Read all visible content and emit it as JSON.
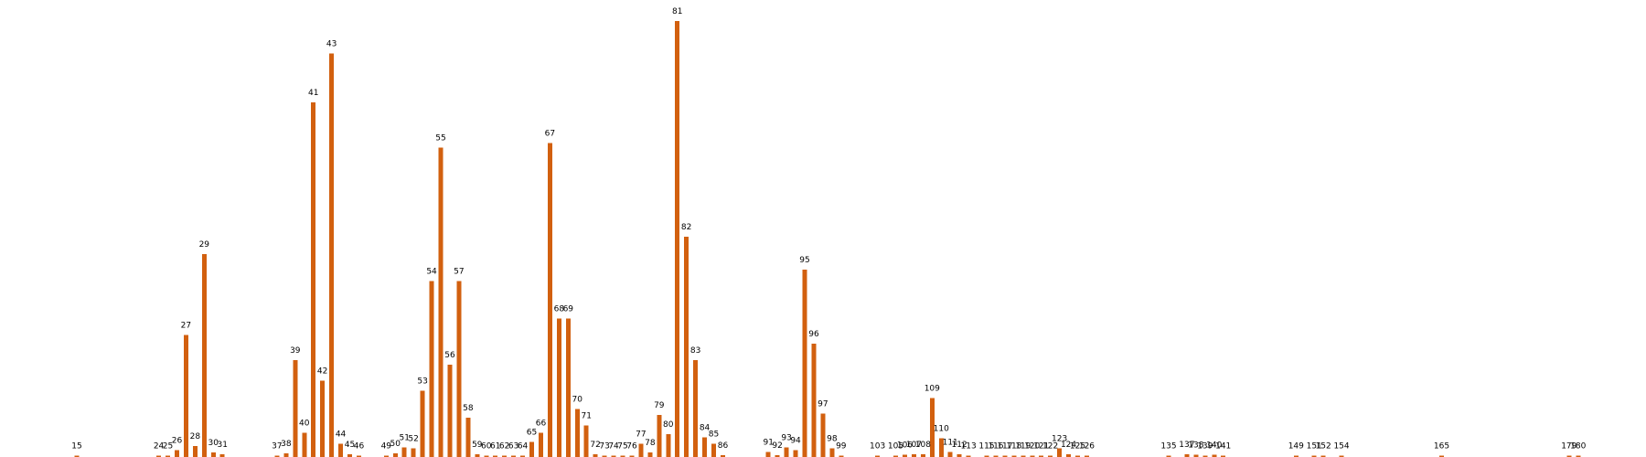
{
  "chart_data": {
    "type": "bar",
    "title": "",
    "xlabel": "",
    "ylabel": "",
    "bar_color": "#d2600f",
    "ylim": [
      0,
      1.0
    ],
    "grid": false,
    "legend": "none",
    "series": [
      {
        "name": "",
        "x": [
          15,
          24,
          25,
          26,
          27,
          28,
          29,
          30,
          31,
          37,
          38,
          39,
          40,
          41,
          42,
          43,
          44,
          45,
          46,
          49,
          50,
          51,
          52,
          53,
          54,
          55,
          56,
          57,
          58,
          59,
          60,
          61,
          62,
          63,
          64,
          65,
          66,
          67,
          68,
          69,
          70,
          71,
          72,
          73,
          74,
          75,
          76,
          77,
          78,
          79,
          80,
          81,
          82,
          83,
          84,
          85,
          86,
          91,
          92,
          93,
          94,
          95,
          96,
          97,
          98,
          99,
          103,
          105,
          106,
          107,
          108,
          109,
          110,
          111,
          112,
          113,
          115,
          116,
          117,
          118,
          119,
          120,
          121,
          122,
          123,
          124,
          125,
          126,
          135,
          137,
          138,
          139,
          140,
          141,
          149,
          151,
          152,
          154,
          165,
          179,
          180
        ],
        "values": [
          0.002,
          0.002,
          0.002,
          0.016,
          0.28,
          0.025,
          0.465,
          0.01,
          0.006,
          0.003,
          0.008,
          0.222,
          0.056,
          0.813,
          0.175,
          0.926,
          0.03,
          0.006,
          0.002,
          0.002,
          0.008,
          0.022,
          0.02,
          0.152,
          0.404,
          0.71,
          0.212,
          0.404,
          0.09,
          0.006,
          0.003,
          0.001,
          0.002,
          0.003,
          0.003,
          0.035,
          0.056,
          0.72,
          0.318,
          0.318,
          0.11,
          0.072,
          0.006,
          0.002,
          0.002,
          0.002,
          0.002,
          0.03,
          0.01,
          0.096,
          0.052,
          1.0,
          0.505,
          0.222,
          0.045,
          0.03,
          0.004,
          0.012,
          0.004,
          0.022,
          0.016,
          0.43,
          0.26,
          0.1,
          0.02,
          0.002,
          0.001,
          0.003,
          0.005,
          0.006,
          0.006,
          0.135,
          0.043,
          0.012,
          0.006,
          0.001,
          0.001,
          0.001,
          0.001,
          0.001,
          0.001,
          0.001,
          0.002,
          0.002,
          0.02,
          0.006,
          0.003,
          0.002,
          0.001,
          0.006,
          0.005,
          0.001,
          0.005,
          0.001,
          0.001,
          0.003,
          0.003,
          0.001,
          0.002,
          0.001,
          0.001
        ]
      }
    ]
  }
}
